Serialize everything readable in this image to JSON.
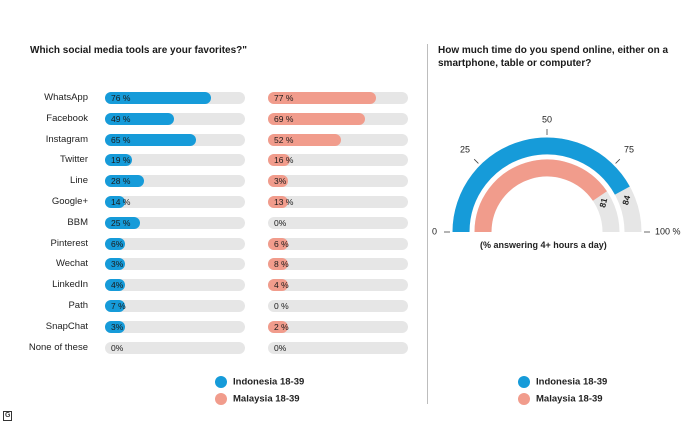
{
  "left_title": "Which social media tools are your favorites?\"",
  "right_title": "How much time do you spend online, either on a smartphone, table or computer?",
  "legend": {
    "indonesia": "Indonesia 18-39",
    "malaysia": "Malaysia 18-39"
  },
  "colors": {
    "indonesia": "#169bd9",
    "malaysia": "#f19c8c",
    "track": "#e6e6e6"
  },
  "chart_data": [
    {
      "type": "bar",
      "title": "Which social media tools are your favorites?\"",
      "categories": [
        "WhatsApp",
        "Facebook",
        "Instagram",
        "Twitter",
        "Line",
        "Google+",
        "BBM",
        "Pinterest",
        "Wechat",
        "LinkedIn",
        "Path",
        "SnapChat",
        "None of these"
      ],
      "series": [
        {
          "name": "Indonesia 18-39",
          "values": [
            76,
            49,
            65,
            19,
            28,
            14,
            25,
            6,
            3,
            4,
            7,
            3,
            0
          ],
          "labels": [
            "76 %",
            "49 %",
            "65 %",
            "19 %",
            "28 %",
            "14 %",
            "25 %",
            "6%",
            "3%",
            "4%",
            "7 %",
            "3%",
            "0%"
          ]
        },
        {
          "name": "Malaysia 18-39",
          "values": [
            77,
            69,
            52,
            16,
            3,
            13,
            0,
            6,
            8,
            4,
            0,
            2,
            0
          ],
          "labels": [
            "77 %",
            "69 %",
            "52 %",
            "16 %",
            "3%",
            "13 %",
            "0%",
            "6 %",
            "8 %",
            "4 %",
            "0 %",
            "2 %",
            "0%"
          ]
        }
      ],
      "ylim": [
        0,
        100
      ],
      "legend": "bottom"
    },
    {
      "type": "gauge",
      "title": "How much time do you spend online, either on a smartphone, table or computer?",
      "note": "(% answering 4+ hours a day)",
      "range": [
        0,
        100
      ],
      "ticks": [
        0,
        25,
        50,
        75,
        100
      ],
      "tick_labels": [
        "0",
        "25",
        "50",
        "75",
        "100 %"
      ],
      "series": [
        {
          "name": "Indonesia 18-39",
          "value": 84,
          "label": "84"
        },
        {
          "name": "Malaysia 18-39",
          "value": 81,
          "label": "81"
        }
      ],
      "legend": "bottom"
    }
  ],
  "logo_text": "G"
}
